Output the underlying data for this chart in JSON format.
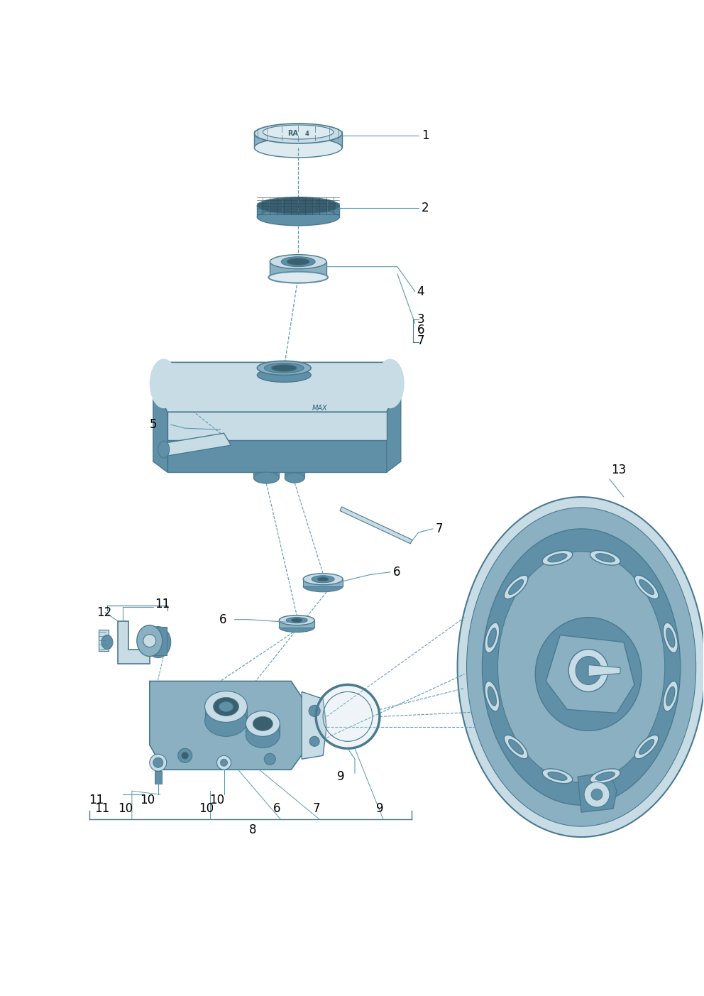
{
  "bg_color": "#ffffff",
  "fig_width": 9.92,
  "fig_height": 14.03,
  "primary_color": "#8ab0c2",
  "secondary_color": "#6090a8",
  "dark_color": "#3a6070",
  "light_color": "#c8dce6",
  "lighter_color": "#ddeaf0",
  "darkest_color": "#2a4858",
  "line_color": "#4a7a8f",
  "label_color": "#000000",
  "leader_color": "#5a9ab0"
}
